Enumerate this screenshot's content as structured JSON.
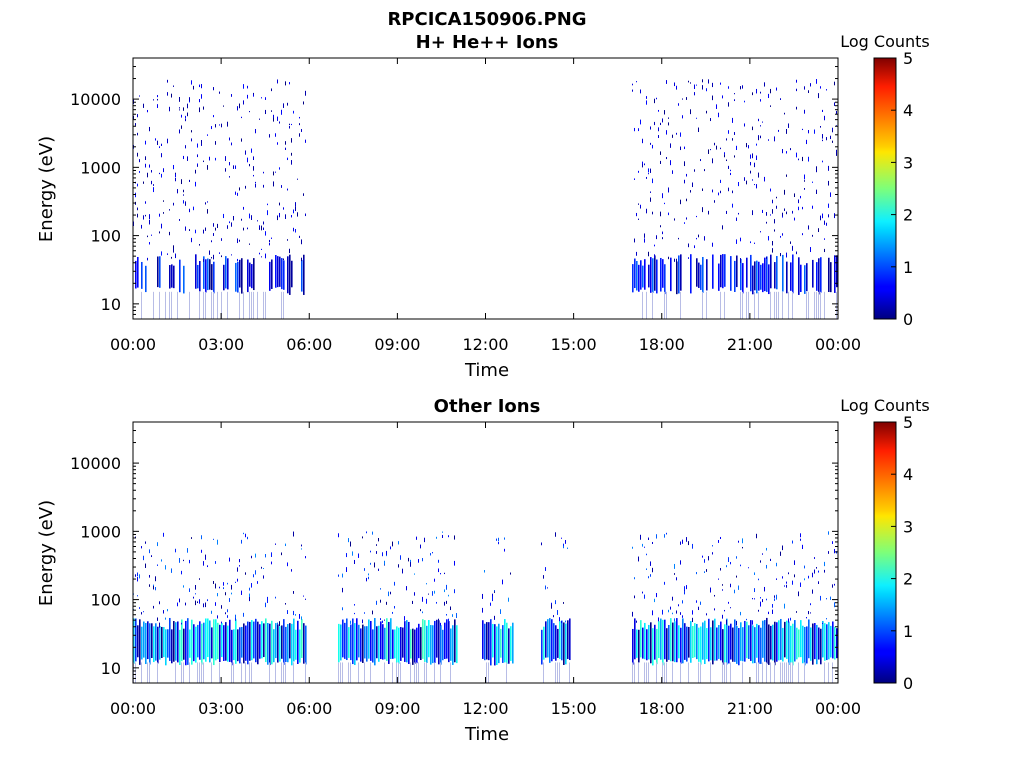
{
  "figure_title": "RPCICA150906.PNG",
  "chart_data": [
    {
      "type": "heatmap",
      "title": "H+ He++ Ions",
      "xlabel": "Time",
      "ylabel": "Energy (eV)",
      "yscale": "log",
      "ylim": [
        6,
        40000
      ],
      "xlim": [
        0,
        24
      ],
      "x_tick_labels": [
        "00:00",
        "03:00",
        "06:00",
        "09:00",
        "12:00",
        "15:00",
        "18:00",
        "21:00",
        "00:00"
      ],
      "y_ticks": [
        10,
        100,
        1000,
        10000
      ],
      "y_tick_labels": [
        "10",
        "100",
        "1000",
        "10000"
      ],
      "colorbar": {
        "label": "Log Counts",
        "range": [
          0,
          5
        ],
        "ticks": [
          "0",
          "1",
          "2",
          "3",
          "4",
          "5"
        ],
        "colormap": "jet"
      },
      "data_intervals_hours": [
        [
          0.0,
          5.9
        ],
        [
          17.0,
          24.0
        ]
      ],
      "dense_band_eV": [
        15,
        45
      ],
      "sparse_extent_eV": [
        15,
        20000
      ],
      "typical_log_counts": [
        0,
        1.2
      ]
    },
    {
      "type": "heatmap",
      "title": "Other Ions",
      "xlabel": "Time",
      "ylabel": "Energy (eV)",
      "yscale": "log",
      "ylim": [
        6,
        40000
      ],
      "xlim": [
        0,
        24
      ],
      "x_tick_labels": [
        "00:00",
        "03:00",
        "06:00",
        "09:00",
        "12:00",
        "15:00",
        "18:00",
        "21:00",
        "00:00"
      ],
      "y_ticks": [
        10,
        100,
        1000,
        10000
      ],
      "y_tick_labels": [
        "10",
        "100",
        "1000",
        "10000"
      ],
      "colorbar": {
        "label": "Log Counts",
        "range": [
          0,
          5
        ],
        "ticks": [
          "0",
          "1",
          "2",
          "3",
          "4",
          "5"
        ],
        "colormap": "jet"
      },
      "data_intervals_hours": [
        [
          0.0,
          5.9
        ],
        [
          7.0,
          11.0
        ],
        [
          11.9,
          12.95
        ],
        [
          13.9,
          14.9
        ],
        [
          17.0,
          24.0
        ]
      ],
      "dense_band_eV": [
        12,
        45
      ],
      "sparse_extent_eV": [
        12,
        1000
      ],
      "typical_log_counts": [
        0,
        2.2
      ]
    }
  ]
}
